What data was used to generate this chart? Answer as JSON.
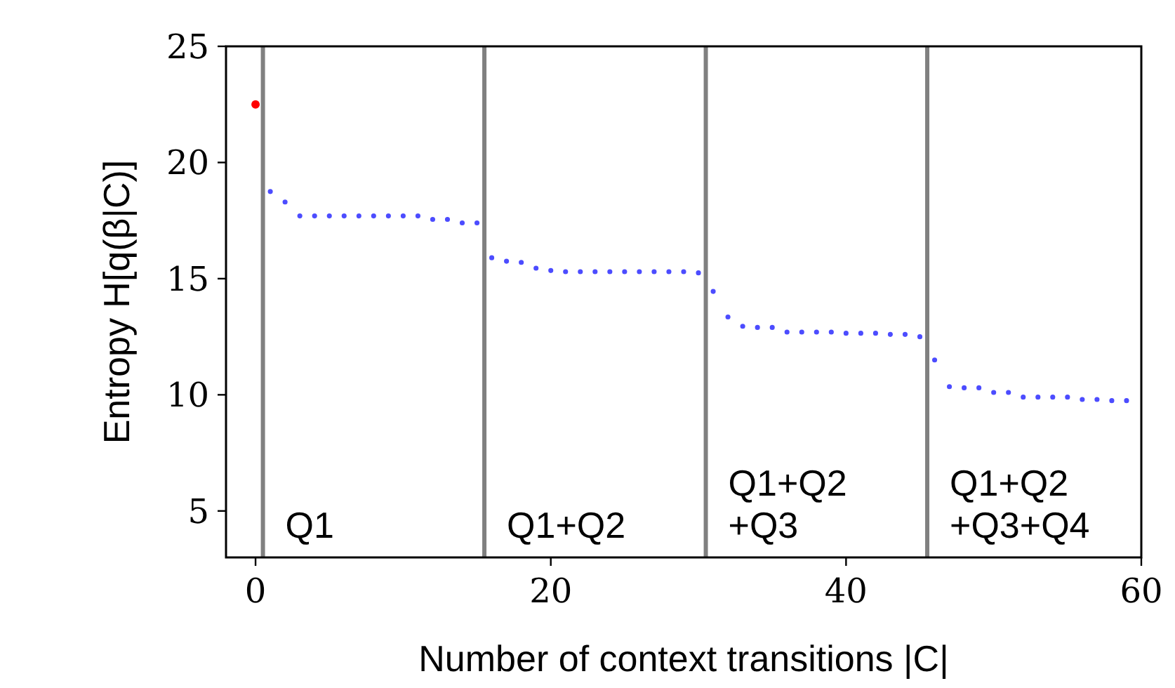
{
  "chart_data": {
    "type": "scatter",
    "xlabel": "Number of context transitions |C|",
    "ylabel": "Entropy H[q(β|C)]",
    "xlim": [
      -2,
      60
    ],
    "ylim": [
      3,
      25
    ],
    "xticks": [
      0,
      20,
      40,
      60
    ],
    "yticks": [
      5,
      10,
      15,
      20,
      25
    ],
    "grid": false,
    "marker": "circle",
    "series": [
      {
        "color": "#ff0000",
        "x": [
          0
        ],
        "values": [
          22.5
        ]
      },
      {
        "color": "#0000ff",
        "x": [
          1,
          2,
          3,
          4,
          5,
          6,
          7,
          8,
          9,
          10,
          11,
          12,
          13,
          14,
          15,
          16,
          17,
          18,
          19,
          20,
          21,
          22,
          23,
          24,
          25,
          26,
          27,
          28,
          29,
          30,
          31,
          32,
          33,
          34,
          35,
          36,
          37,
          38,
          39,
          40,
          41,
          42,
          43,
          44,
          45,
          46,
          47,
          48,
          49,
          50,
          51,
          52,
          53,
          54,
          55,
          56,
          57,
          58,
          59
        ],
        "values": [
          18.75,
          18.3,
          17.7,
          17.7,
          17.7,
          17.7,
          17.7,
          17.7,
          17.7,
          17.7,
          17.7,
          17.55,
          17.55,
          17.4,
          17.4,
          15.9,
          15.75,
          15.7,
          15.45,
          15.35,
          15.3,
          15.3,
          15.3,
          15.3,
          15.3,
          15.3,
          15.3,
          15.3,
          15.3,
          15.25,
          14.45,
          13.35,
          12.95,
          12.9,
          12.9,
          12.7,
          12.7,
          12.7,
          12.7,
          12.65,
          12.65,
          12.65,
          12.6,
          12.6,
          12.5,
          11.5,
          10.35,
          10.3,
          10.3,
          10.1,
          10.1,
          9.9,
          9.9,
          9.9,
          9.9,
          9.8,
          9.8,
          9.75,
          9.75
        ]
      }
    ],
    "ref_lines": [
      {
        "axis": "x",
        "value": 0.5,
        "label": "Q1",
        "color": "#808080"
      },
      {
        "axis": "x",
        "value": 15.5,
        "label": "Q1+Q2",
        "color": "#808080"
      },
      {
        "axis": "x",
        "value": 30.5,
        "label": "Q1+Q2\n+Q3",
        "color": "#808080"
      },
      {
        "axis": "x",
        "value": 45.5,
        "label": "Q1+Q2\n+Q3+Q4",
        "color": "#808080"
      }
    ]
  }
}
